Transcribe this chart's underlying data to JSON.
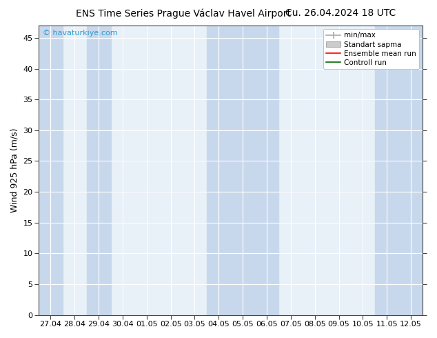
{
  "title_left": "ENS Time Series Prague Václav Havel Airport",
  "title_right": "Cu. 26.04.2024 18 UTC",
  "ylabel": "Wind 925 hPa (m/s)",
  "watermark": "© havaturkiye.com",
  "xlabel_ticks": [
    "27.04",
    "28.04",
    "29.04",
    "30.04",
    "01.05",
    "02.05",
    "03.05",
    "04.05",
    "05.05",
    "06.05",
    "07.05",
    "08.05",
    "09.05",
    "10.05",
    "11.05",
    "12.05"
  ],
  "ylim": [
    0,
    47
  ],
  "yticks": [
    0,
    5,
    10,
    15,
    20,
    25,
    30,
    35,
    40,
    45
  ],
  "background_color": "#ffffff",
  "plot_bg_color": "#e8f0f8",
  "shaded_col_color": "#c8d8ec",
  "shaded_columns": [
    0,
    2,
    7,
    8,
    9,
    14,
    15
  ],
  "legend_labels": [
    "min/max",
    "Standart sapma",
    "Ensemble mean run",
    "Controll run"
  ],
  "legend_line_color": "#aaaaaa",
  "legend_patch_color": "#cccccc",
  "legend_red": "#ff0000",
  "legend_green": "#006600",
  "title_fontsize": 10,
  "tick_fontsize": 8,
  "ylabel_fontsize": 9,
  "watermark_color": "#3399cc",
  "n_columns": 16,
  "grid_color": "#ffffff",
  "axis_color": "#444444"
}
